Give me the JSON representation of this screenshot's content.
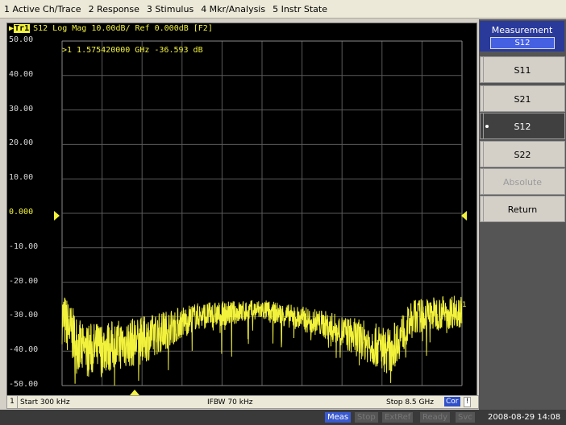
{
  "menu": [
    "1 Active Ch/Trace",
    "2 Response",
    "3 Stimulus",
    "4 Mkr/Analysis",
    "5 Instr State"
  ],
  "trace_header": {
    "badge": "Tr1",
    "text": "S12 Log Mag 10.00dB/ Ref 0.000dB [F2]"
  },
  "marker": {
    "readout": ">1  1.575420000 GHz -36.593 dB",
    "frequency_ghz": 1.57542,
    "value_db": -36.593
  },
  "trace_number_label": "1",
  "y_axis": {
    "labels": [
      "50.00",
      "40.00",
      "30.00",
      "20.00",
      "10.00",
      "0.000",
      "-10.00",
      "-20.00",
      "-30.00",
      "-40.00",
      "-50.00"
    ],
    "max": 50,
    "min": -50,
    "ref_label_index": 5
  },
  "chart_data": {
    "type": "line",
    "title": "",
    "xlabel": "",
    "ylabel": "",
    "x_range_hz": [
      300000,
      8500000000
    ],
    "ylim": [
      -50,
      50
    ],
    "grid": true,
    "series": [
      {
        "color": "#f2f23c",
        "envelope_db": [
          {
            "x_frac": 0.0,
            "center": -30,
            "spread": 8
          },
          {
            "x_frac": 0.05,
            "center": -40,
            "spread": 8
          },
          {
            "x_frac": 0.2,
            "center": -37,
            "spread": 7
          },
          {
            "x_frac": 0.33,
            "center": -30,
            "spread": 4
          },
          {
            "x_frac": 0.5,
            "center": -28,
            "spread": 3
          },
          {
            "x_frac": 0.65,
            "center": -32,
            "spread": 4
          },
          {
            "x_frac": 0.82,
            "center": -40,
            "spread": 7
          },
          {
            "x_frac": 0.88,
            "center": -30,
            "spread": 5
          },
          {
            "x_frac": 1.0,
            "center": -28,
            "spread": 5
          }
        ]
      }
    ]
  },
  "info_bar": {
    "channel": "1",
    "start": "Start 300 kHz",
    "ifbw": "IFBW 70 kHz",
    "stop": "Stop 8.5 GHz",
    "cor": "Cor",
    "excl": "!"
  },
  "status_bar": {
    "meas": "Meas",
    "stop": "Stop",
    "extref": "ExtRef",
    "ready": "Ready",
    "svc": "Svc",
    "datetime": "2008-08-29 14:08"
  },
  "softkeys": {
    "title": "Measurement",
    "current": "S12",
    "buttons": [
      {
        "label": "S11",
        "state": "normal"
      },
      {
        "label": "S21",
        "state": "normal"
      },
      {
        "label": "S12",
        "state": "active"
      },
      {
        "label": "S22",
        "state": "normal"
      },
      {
        "label": "Absolute",
        "state": "disabled"
      },
      {
        "label": "Return",
        "state": "normal"
      }
    ]
  }
}
